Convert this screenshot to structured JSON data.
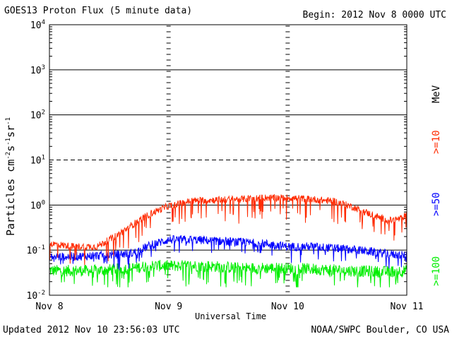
{
  "header": {
    "title": "GOES13 Proton Flux (5 minute data)",
    "begin": "Begin: 2012 Nov 8 0000 UTC"
  },
  "footer": {
    "updated": "Updated 2012 Nov 10 23:56:03 UTC",
    "credit": "NOAA/SWPC Boulder, CO USA"
  },
  "legend": {
    "unit": "MeV",
    "items": [
      {
        "label": ">=10",
        "color": "#ff2a00"
      },
      {
        "label": ">=50",
        "color": "#0000ff"
      },
      {
        "label": ">=100",
        "color": "#00ee00"
      }
    ]
  },
  "chart_data": {
    "type": "line",
    "title": "GOES13 Proton Flux (5 minute data)",
    "xlabel": "Universal Time",
    "ylabel": "Particles cm-2s-1sr-1",
    "yscale": "log",
    "ylim": [
      0.01,
      10000
    ],
    "y_ticks": [
      {
        "base": "10",
        "exp": "-2"
      },
      {
        "base": "10",
        "exp": "-1"
      },
      {
        "base": "10",
        "exp": "0"
      },
      {
        "base": "10",
        "exp": "1"
      },
      {
        "base": "10",
        "exp": "2"
      },
      {
        "base": "10",
        "exp": "3"
      },
      {
        "base": "10",
        "exp": "4"
      }
    ],
    "x_ticks": [
      "Nov 8",
      "Nov 9",
      "Nov 10",
      "Nov 11"
    ],
    "xlim_days": [
      0,
      3
    ],
    "threshold_dashed": [
      10
    ],
    "grid_solid": [
      0.1,
      1,
      100,
      1000
    ],
    "series": [
      {
        "name": ">=10",
        "color": "#ff2a00",
        "x": [
          0.0,
          0.2,
          0.4,
          0.55,
          0.65,
          0.75,
          0.85,
          1.0,
          1.2,
          1.4,
          1.6,
          1.8,
          2.0,
          2.2,
          2.4,
          2.55,
          2.65,
          2.75,
          2.85,
          2.95,
          3.0
        ],
        "y": [
          0.14,
          0.12,
          0.12,
          0.2,
          0.3,
          0.45,
          0.65,
          0.95,
          1.25,
          1.3,
          1.35,
          1.45,
          1.45,
          1.35,
          1.2,
          0.9,
          0.7,
          0.55,
          0.45,
          0.5,
          0.6
        ]
      },
      {
        "name": ">=50",
        "color": "#0000ff",
        "x": [
          0.0,
          0.4,
          0.7,
          0.85,
          1.0,
          1.2,
          1.4,
          1.6,
          1.8,
          2.0,
          2.2,
          2.4,
          2.6,
          2.8,
          3.0
        ],
        "y": [
          0.07,
          0.075,
          0.085,
          0.13,
          0.17,
          0.17,
          0.16,
          0.15,
          0.14,
          0.12,
          0.12,
          0.11,
          0.1,
          0.085,
          0.075
        ]
      },
      {
        "name": ">=100",
        "color": "#00ee00",
        "x": [
          0.0,
          0.4,
          0.7,
          0.85,
          1.0,
          1.3,
          1.6,
          1.9,
          2.2,
          2.5,
          2.8,
          3.0
        ],
        "y": [
          0.035,
          0.035,
          0.04,
          0.045,
          0.045,
          0.045,
          0.04,
          0.04,
          0.038,
          0.035,
          0.033,
          0.035
        ]
      }
    ]
  }
}
